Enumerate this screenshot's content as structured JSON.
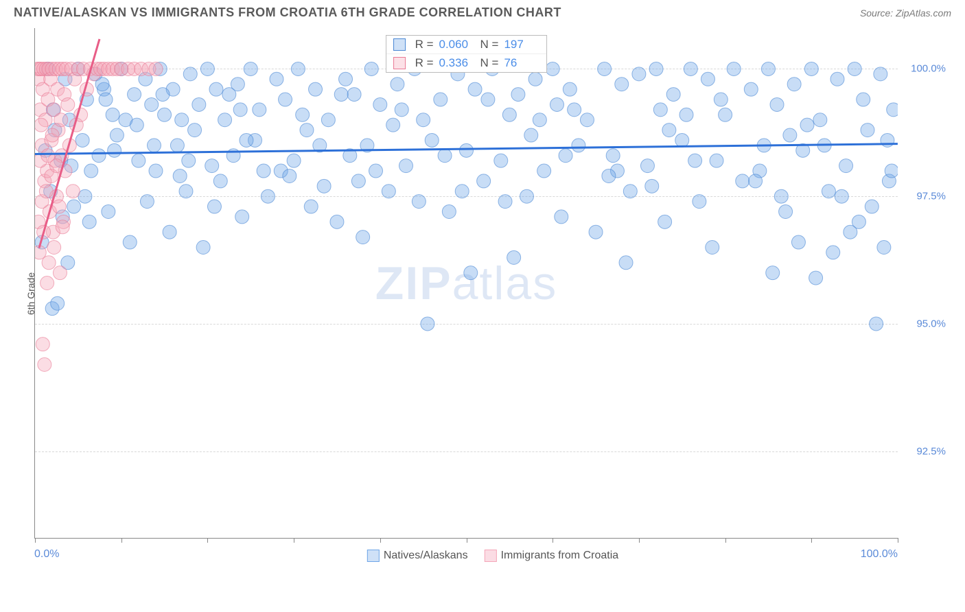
{
  "title": "NATIVE/ALASKAN VS IMMIGRANTS FROM CROATIA 6TH GRADE CORRELATION CHART",
  "source": "Source: ZipAtlas.com",
  "ylabel": "6th Grade",
  "watermark_bold": "ZIP",
  "watermark_light": "atlas",
  "chart": {
    "type": "scatter",
    "xlim": [
      0,
      100
    ],
    "ylim": [
      90.8,
      100.8
    ],
    "yticks": [
      92.5,
      95.0,
      97.5,
      100.0
    ],
    "ytick_labels": [
      "92.5%",
      "95.0%",
      "97.5%",
      "100.0%"
    ],
    "xtick_positions": [
      0,
      10,
      20,
      30,
      40,
      50,
      60,
      70,
      80,
      90,
      100
    ],
    "x_left_label": "0.0%",
    "x_right_label": "100.0%",
    "grid_color": "#d8d8d8",
    "background_color": "#ffffff",
    "marker_radius": 10,
    "marker_opacity": 0.38,
    "series": [
      {
        "name": "Natives/Alaskans",
        "color": "#6ea5e8",
        "stroke": "#4a87d4",
        "R": "0.060",
        "N": "197",
        "regression": {
          "x1": 0,
          "y1": 98.35,
          "x2": 100,
          "y2": 98.55,
          "color": "#2d70d8",
          "width": 3
        },
        "points": [
          [
            0.8,
            96.6
          ],
          [
            1.2,
            98.4
          ],
          [
            1.5,
            100.0
          ],
          [
            1.8,
            97.6
          ],
          [
            2.0,
            95.3
          ],
          [
            2.1,
            99.2
          ],
          [
            2.3,
            98.8
          ],
          [
            2.6,
            95.4
          ],
          [
            3.0,
            98.2
          ],
          [
            3.2,
            97.1
          ],
          [
            3.5,
            99.8
          ],
          [
            3.8,
            96.2
          ],
          [
            4.0,
            99.0
          ],
          [
            4.2,
            98.1
          ],
          [
            4.5,
            97.3
          ],
          [
            5.0,
            100.0
          ],
          [
            5.5,
            98.6
          ],
          [
            6.0,
            99.4
          ],
          [
            6.3,
            97.0
          ],
          [
            7.0,
            99.9
          ],
          [
            7.4,
            98.3
          ],
          [
            8.0,
            99.6
          ],
          [
            8.5,
            97.2
          ],
          [
            9.0,
            99.1
          ],
          [
            9.5,
            98.7
          ],
          [
            10.0,
            100.0
          ],
          [
            10.5,
            99.0
          ],
          [
            11.0,
            96.6
          ],
          [
            11.5,
            99.5
          ],
          [
            12.0,
            98.2
          ],
          [
            12.8,
            99.8
          ],
          [
            13.0,
            97.4
          ],
          [
            13.5,
            99.3
          ],
          [
            14.0,
            98.0
          ],
          [
            14.5,
            100.0
          ],
          [
            15.0,
            99.1
          ],
          [
            15.6,
            96.8
          ],
          [
            16.0,
            99.6
          ],
          [
            16.5,
            98.5
          ],
          [
            17.0,
            99.0
          ],
          [
            17.5,
            97.6
          ],
          [
            18.0,
            99.9
          ],
          [
            18.5,
            98.8
          ],
          [
            19.0,
            99.3
          ],
          [
            19.5,
            96.5
          ],
          [
            20.0,
            100.0
          ],
          [
            20.5,
            98.1
          ],
          [
            21.0,
            99.6
          ],
          [
            21.5,
            97.8
          ],
          [
            22.0,
            99.0
          ],
          [
            23.0,
            98.3
          ],
          [
            23.5,
            99.7
          ],
          [
            24.0,
            97.1
          ],
          [
            25.0,
            100.0
          ],
          [
            25.5,
            98.6
          ],
          [
            26.0,
            99.2
          ],
          [
            27.0,
            97.5
          ],
          [
            28.0,
            99.8
          ],
          [
            28.5,
            98.0
          ],
          [
            29.0,
            99.4
          ],
          [
            30.0,
            98.2
          ],
          [
            30.5,
            100.0
          ],
          [
            31.0,
            99.1
          ],
          [
            32.0,
            97.3
          ],
          [
            32.5,
            99.6
          ],
          [
            33.0,
            98.5
          ],
          [
            34.0,
            99.0
          ],
          [
            35.0,
            97.0
          ],
          [
            36.0,
            99.8
          ],
          [
            36.5,
            98.3
          ],
          [
            37.0,
            99.5
          ],
          [
            38.0,
            96.7
          ],
          [
            39.0,
            100.0
          ],
          [
            39.5,
            98.0
          ],
          [
            40.0,
            99.3
          ],
          [
            41.0,
            97.6
          ],
          [
            42.0,
            99.7
          ],
          [
            43.0,
            98.1
          ],
          [
            44.0,
            100.0
          ],
          [
            45.0,
            99.0
          ],
          [
            45.5,
            95.0
          ],
          [
            46.0,
            98.6
          ],
          [
            47.0,
            99.4
          ],
          [
            48.0,
            97.2
          ],
          [
            49.0,
            99.9
          ],
          [
            50.0,
            98.4
          ],
          [
            50.5,
            96.0
          ],
          [
            51.0,
            99.6
          ],
          [
            52.0,
            97.8
          ],
          [
            53.0,
            100.0
          ],
          [
            54.0,
            98.2
          ],
          [
            55.0,
            99.1
          ],
          [
            55.5,
            96.3
          ],
          [
            56.0,
            99.5
          ],
          [
            57.0,
            97.5
          ],
          [
            58.0,
            99.8
          ],
          [
            59.0,
            98.0
          ],
          [
            60.0,
            100.0
          ],
          [
            60.5,
            99.3
          ],
          [
            61.0,
            97.1
          ],
          [
            62.0,
            99.6
          ],
          [
            63.0,
            98.5
          ],
          [
            64.0,
            99.0
          ],
          [
            65.0,
            96.8
          ],
          [
            66.0,
            100.0
          ],
          [
            67.0,
            98.3
          ],
          [
            68.0,
            99.7
          ],
          [
            68.5,
            96.2
          ],
          [
            69.0,
            97.6
          ],
          [
            70.0,
            99.9
          ],
          [
            71.0,
            98.1
          ],
          [
            72.0,
            100.0
          ],
          [
            72.5,
            99.2
          ],
          [
            73.0,
            97.0
          ],
          [
            74.0,
            99.5
          ],
          [
            75.0,
            98.6
          ],
          [
            76.0,
            100.0
          ],
          [
            77.0,
            97.4
          ],
          [
            78.0,
            99.8
          ],
          [
            78.5,
            96.5
          ],
          [
            79.0,
            98.2
          ],
          [
            80.0,
            99.1
          ],
          [
            81.0,
            100.0
          ],
          [
            82.0,
            97.8
          ],
          [
            83.0,
            99.6
          ],
          [
            84.0,
            98.0
          ],
          [
            85.0,
            100.0
          ],
          [
            85.5,
            96.0
          ],
          [
            86.0,
            99.3
          ],
          [
            87.0,
            97.2
          ],
          [
            88.0,
            99.7
          ],
          [
            88.5,
            96.6
          ],
          [
            89.0,
            98.4
          ],
          [
            90.0,
            100.0
          ],
          [
            90.5,
            95.9
          ],
          [
            91.0,
            99.0
          ],
          [
            92.0,
            97.6
          ],
          [
            92.5,
            96.4
          ],
          [
            93.0,
            99.8
          ],
          [
            94.0,
            98.1
          ],
          [
            94.5,
            96.8
          ],
          [
            95.0,
            100.0
          ],
          [
            95.5,
            97.0
          ],
          [
            96.0,
            99.4
          ],
          [
            97.0,
            97.3
          ],
          [
            97.5,
            95.0
          ],
          [
            98.0,
            99.9
          ],
          [
            98.4,
            96.5
          ],
          [
            98.8,
            98.6
          ],
          [
            99.0,
            97.8
          ],
          [
            99.3,
            98.0
          ],
          [
            99.5,
            99.2
          ],
          [
            6.5,
            98.0
          ],
          [
            8.2,
            99.4
          ],
          [
            11.8,
            98.9
          ],
          [
            14.8,
            99.5
          ],
          [
            17.8,
            98.2
          ],
          [
            22.5,
            99.5
          ],
          [
            26.5,
            98.0
          ],
          [
            31.5,
            98.8
          ],
          [
            35.5,
            99.5
          ],
          [
            38.5,
            98.5
          ],
          [
            42.5,
            99.2
          ],
          [
            47.5,
            98.3
          ],
          [
            52.5,
            99.4
          ],
          [
            57.5,
            98.7
          ],
          [
            62.5,
            99.2
          ],
          [
            67.5,
            98.0
          ],
          [
            73.5,
            98.8
          ],
          [
            79.5,
            99.4
          ],
          [
            84.5,
            98.5
          ],
          [
            89.5,
            98.9
          ],
          [
            93.5,
            97.5
          ],
          [
            96.5,
            98.8
          ],
          [
            5.8,
            97.5
          ],
          [
            9.2,
            98.4
          ],
          [
            16.8,
            97.9
          ],
          [
            24.5,
            98.6
          ],
          [
            33.5,
            97.7
          ],
          [
            41.5,
            98.9
          ],
          [
            49.5,
            97.6
          ],
          [
            58.5,
            99.0
          ],
          [
            66.5,
            97.9
          ],
          [
            75.5,
            99.1
          ],
          [
            83.5,
            97.8
          ],
          [
            91.5,
            98.5
          ],
          [
            13.8,
            98.5
          ],
          [
            29.5,
            97.9
          ],
          [
            44.5,
            97.4
          ],
          [
            61.5,
            98.3
          ],
          [
            76.5,
            98.2
          ],
          [
            87.5,
            98.7
          ],
          [
            20.8,
            97.3
          ],
          [
            37.5,
            97.8
          ],
          [
            54.5,
            97.4
          ],
          [
            71.5,
            97.7
          ],
          [
            86.5,
            97.5
          ],
          [
            7.8,
            99.7
          ],
          [
            23.8,
            99.2
          ]
        ]
      },
      {
        "name": "Immigrants from Croatia",
        "color": "#f5a5b8",
        "stroke": "#ea7a95",
        "R": "0.336",
        "N": "76",
        "regression": {
          "x1": 0.5,
          "y1": 96.5,
          "x2": 7.5,
          "y2": 100.6,
          "color": "#e85d87",
          "width": 3
        },
        "points": [
          [
            0.3,
            100.0
          ],
          [
            0.4,
            99.8
          ],
          [
            0.5,
            100.0
          ],
          [
            0.6,
            99.2
          ],
          [
            0.7,
            100.0
          ],
          [
            0.8,
            98.5
          ],
          [
            0.9,
            99.6
          ],
          [
            1.0,
            100.0
          ],
          [
            1.1,
            97.8
          ],
          [
            1.2,
            99.0
          ],
          [
            1.3,
            100.0
          ],
          [
            1.4,
            98.0
          ],
          [
            1.5,
            99.4
          ],
          [
            1.6,
            100.0
          ],
          [
            1.7,
            97.2
          ],
          [
            1.8,
            99.8
          ],
          [
            1.9,
            98.6
          ],
          [
            2.0,
            100.0
          ],
          [
            2.1,
            96.8
          ],
          [
            2.2,
            99.2
          ],
          [
            2.3,
            98.2
          ],
          [
            2.4,
            100.0
          ],
          [
            2.5,
            97.5
          ],
          [
            2.6,
            99.6
          ],
          [
            2.7,
            98.8
          ],
          [
            2.8,
            100.0
          ],
          [
            2.9,
            96.0
          ],
          [
            3.0,
            99.0
          ],
          [
            3.1,
            98.3
          ],
          [
            3.2,
            100.0
          ],
          [
            3.3,
            97.0
          ],
          [
            3.4,
            99.5
          ],
          [
            3.5,
            98.0
          ],
          [
            3.6,
            100.0
          ],
          [
            3.8,
            99.3
          ],
          [
            4.0,
            98.5
          ],
          [
            4.2,
            100.0
          ],
          [
            4.4,
            97.6
          ],
          [
            4.6,
            99.8
          ],
          [
            4.8,
            98.9
          ],
          [
            5.0,
            100.0
          ],
          [
            5.3,
            99.1
          ],
          [
            5.6,
            100.0
          ],
          [
            6.0,
            99.6
          ],
          [
            6.4,
            100.0
          ],
          [
            6.8,
            99.9
          ],
          [
            7.2,
            100.0
          ],
          [
            7.6,
            100.0
          ],
          [
            8.0,
            100.0
          ],
          [
            8.5,
            100.0
          ],
          [
            9.0,
            100.0
          ],
          [
            9.5,
            100.0
          ],
          [
            10.0,
            100.0
          ],
          [
            10.8,
            100.0
          ],
          [
            11.5,
            100.0
          ],
          [
            12.3,
            100.0
          ],
          [
            13.2,
            100.0
          ],
          [
            14.0,
            100.0
          ],
          [
            0.4,
            97.0
          ],
          [
            0.5,
            96.4
          ],
          [
            0.6,
            98.2
          ],
          [
            0.8,
            97.4
          ],
          [
            1.0,
            96.8
          ],
          [
            1.3,
            97.6
          ],
          [
            1.6,
            96.2
          ],
          [
            1.9,
            97.9
          ],
          [
            2.2,
            96.5
          ],
          [
            2.5,
            98.1
          ],
          [
            2.8,
            97.3
          ],
          [
            3.2,
            96.9
          ],
          [
            0.9,
            94.6
          ],
          [
            1.1,
            94.2
          ],
          [
            1.4,
            95.8
          ],
          [
            0.7,
            98.9
          ],
          [
            1.5,
            98.3
          ],
          [
            2.0,
            98.7
          ]
        ]
      }
    ]
  },
  "bottom_legend": [
    {
      "label": "Natives/Alaskans",
      "fill": "#cfe1f7",
      "border": "#6ea5e8"
    },
    {
      "label": "Immigrants from Croatia",
      "fill": "#fbdce4",
      "border": "#f5a5b8"
    }
  ]
}
